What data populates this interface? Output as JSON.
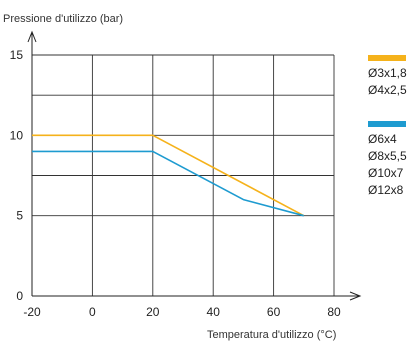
{
  "chart_data": {
    "type": "line",
    "ylabel": "Pressione d'utilizzo (bar)",
    "xlabel": "Temperatura d'utilizzo (°C)",
    "xlim": [
      -20,
      80
    ],
    "ylim": [
      0,
      15
    ],
    "x_ticks": [
      -20,
      0,
      20,
      40,
      60,
      80
    ],
    "y_ticks": [
      0,
      5,
      10,
      15
    ],
    "y_gridlines": [
      0,
      5,
      7.5,
      10,
      12.5,
      15
    ],
    "grid": true,
    "series": [
      {
        "labels": [
          "Ø3x1,8",
          "Ø4x2,5"
        ],
        "color": "#F5B21B",
        "x": [
          -20,
          20,
          70
        ],
        "y": [
          10,
          10,
          5
        ]
      },
      {
        "labels": [
          "Ø6x4",
          "Ø8x5,5",
          "Ø10x7",
          "Ø12x8"
        ],
        "color": "#1E9BD0",
        "x": [
          -20,
          20,
          50,
          70
        ],
        "y": [
          9,
          9,
          6,
          5
        ]
      }
    ],
    "legend_position": "right"
  }
}
